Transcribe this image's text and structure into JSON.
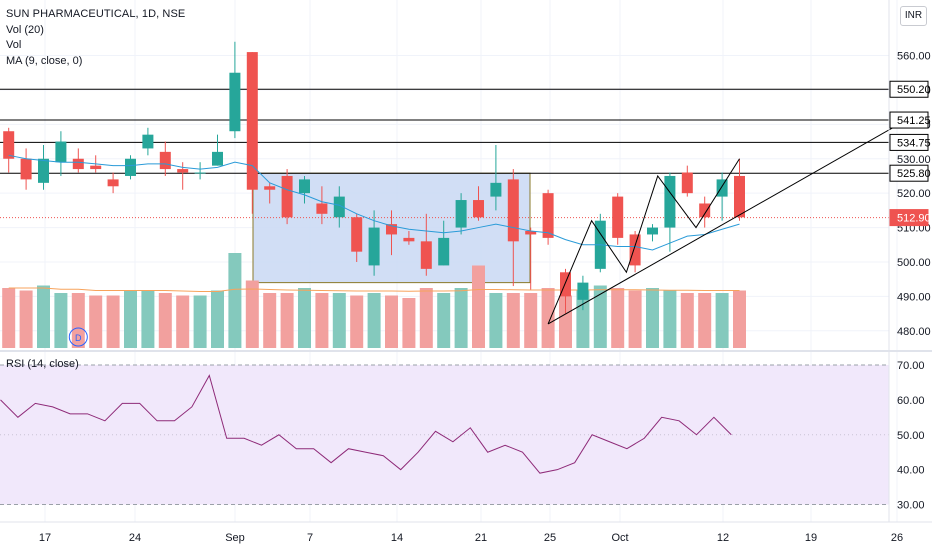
{
  "header": {
    "title": "SUN PHARMACEUTICAL, 1D, NSE",
    "indicators": [
      "Vol (20)",
      "Vol",
      "MA (9, close, 0)"
    ],
    "currency": "INR"
  },
  "rsi_panel": {
    "label": "RSI (14, close)"
  },
  "colors": {
    "up": "#26a69a",
    "down": "#ef5350",
    "vol_up": "#84c9bd",
    "vol_down": "#f2a09e",
    "ma": "#2a9bd8",
    "vol_ma": "#f7a35c",
    "rsi": "#8e2a78",
    "rsi_band": "#f1e8fb",
    "box_fill": "#c9d8f3",
    "box_stroke": "#8a7a2a"
  },
  "chart_data": {
    "type": "candlestick",
    "price_axis": {
      "ticks": [
        480,
        490,
        500,
        510,
        520,
        530,
        540,
        550,
        560
      ],
      "range": [
        475,
        568
      ]
    },
    "price_labels": [
      {
        "value": 550.2,
        "text": "550.20"
      },
      {
        "value": 541.25,
        "text": "541.25"
      },
      {
        "value": 534.75,
        "text": "534.75"
      },
      {
        "value": 525.8,
        "text": "525.80"
      },
      {
        "value": 512.9,
        "text": "512.90",
        "current": true
      }
    ],
    "horizontal_lines": [
      550.2,
      541.25,
      534.75,
      525.8
    ],
    "x_labels": [
      "17",
      "24",
      "Sep",
      "7",
      "14",
      "21",
      "25",
      "Oct",
      "12",
      "19",
      "26"
    ],
    "candles": [
      {
        "date": "Aug 13",
        "o": 538,
        "h": 539,
        "l": 526,
        "c": 530
      },
      {
        "date": "Aug 14",
        "o": 530,
        "h": 533,
        "l": 521,
        "c": 524
      },
      {
        "date": "Aug 17",
        "o": 523,
        "h": 534,
        "l": 521,
        "c": 530
      },
      {
        "date": "Aug 18",
        "o": 529,
        "h": 538,
        "l": 525,
        "c": 535
      },
      {
        "date": "Aug 19",
        "o": 530,
        "h": 533,
        "l": 526,
        "c": 527
      },
      {
        "date": "Aug 20",
        "o": 528,
        "h": 531,
        "l": 526,
        "c": 527
      },
      {
        "date": "Aug 21",
        "o": 524,
        "h": 526,
        "l": 520,
        "c": 522
      },
      {
        "date": "Aug 24",
        "o": 525,
        "h": 531,
        "l": 524,
        "c": 530
      },
      {
        "date": "Aug 25",
        "o": 533,
        "h": 539,
        "l": 531,
        "c": 537
      },
      {
        "date": "Aug 26",
        "o": 532,
        "h": 535,
        "l": 525,
        "c": 527
      },
      {
        "date": "Aug 27",
        "o": 527,
        "h": 529,
        "l": 521,
        "c": 526
      },
      {
        "date": "Aug 28",
        "o": 526,
        "h": 529,
        "l": 524,
        "c": 526
      },
      {
        "date": "Aug 31",
        "o": 528,
        "h": 537,
        "l": 528,
        "c": 532
      },
      {
        "date": "Sep 1",
        "o": 538,
        "h": 564,
        "l": 536,
        "c": 555
      },
      {
        "date": "Sep 2",
        "o": 561,
        "h": 561,
        "l": 514,
        "c": 521
      },
      {
        "date": "Sep 3",
        "o": 522,
        "h": 523,
        "l": 517,
        "c": 521
      },
      {
        "date": "Sep 4",
        "o": 525,
        "h": 527,
        "l": 511,
        "c": 513
      },
      {
        "date": "Sep 7",
        "o": 520,
        "h": 525,
        "l": 517,
        "c": 524
      },
      {
        "date": "Sep 8",
        "o": 517,
        "h": 522,
        "l": 511,
        "c": 514
      },
      {
        "date": "Sep 9",
        "o": 513,
        "h": 522,
        "l": 510,
        "c": 519
      },
      {
        "date": "Sep 10",
        "o": 513,
        "h": 514,
        "l": 500,
        "c": 503
      },
      {
        "date": "Sep 11",
        "o": 499,
        "h": 515,
        "l": 496,
        "c": 510
      },
      {
        "date": "Sep 14",
        "o": 511,
        "h": 515,
        "l": 502,
        "c": 508
      },
      {
        "date": "Sep 15",
        "o": 507,
        "h": 509,
        "l": 505,
        "c": 506
      },
      {
        "date": "Sep 16",
        "o": 506,
        "h": 514,
        "l": 496,
        "c": 498
      },
      {
        "date": "Sep 17",
        "o": 499,
        "h": 512,
        "l": 499,
        "c": 507
      },
      {
        "date": "Sep 18",
        "o": 510,
        "h": 520,
        "l": 508,
        "c": 518
      },
      {
        "date": "Sep 21",
        "o": 518,
        "h": 522,
        "l": 512,
        "c": 513
      },
      {
        "date": "Sep 22",
        "o": 519,
        "h": 534,
        "l": 515,
        "c": 523
      },
      {
        "date": "Sep 23",
        "o": 524,
        "h": 527,
        "l": 493,
        "c": 506
      },
      {
        "date": "Sep 24",
        "o": 509,
        "h": 510,
        "l": 492,
        "c": 508
      },
      {
        "date": "Sep 25",
        "o": 520,
        "h": 521,
        "l": 505,
        "c": 507
      },
      {
        "date": "Sep 28",
        "o": 497,
        "h": 498,
        "l": 485,
        "c": 490
      },
      {
        "date": "Sep 29",
        "o": 489,
        "h": 496,
        "l": 486,
        "c": 494
      },
      {
        "date": "Sep 30",
        "o": 498,
        "h": 514,
        "l": 497,
        "c": 512
      },
      {
        "date": "Oct 1",
        "o": 519,
        "h": 520,
        "l": 505,
        "c": 507
      },
      {
        "date": "Oct 5",
        "o": 508,
        "h": 509,
        "l": 497,
        "c": 499
      },
      {
        "date": "Oct 6",
        "o": 508,
        "h": 511,
        "l": 506,
        "c": 510
      },
      {
        "date": "Oct 7",
        "o": 510,
        "h": 526,
        "l": 503,
        "c": 525
      },
      {
        "date": "Oct 8",
        "o": 526,
        "h": 528,
        "l": 519,
        "c": 520
      },
      {
        "date": "Oct 9",
        "o": 517,
        "h": 519,
        "l": 510,
        "c": 513
      },
      {
        "date": "Oct 12",
        "o": 519,
        "h": 526,
        "l": 512,
        "c": 524
      },
      {
        "date": "Oct 13",
        "o": 525,
        "h": 530,
        "l": 512,
        "c": 513
      }
    ],
    "ma9": [
      531,
      530,
      529.5,
      529,
      529,
      528.5,
      528,
      528,
      528.5,
      528.5,
      527.5,
      527,
      527.5,
      529,
      528,
      523,
      521,
      519.5,
      517.5,
      516.5,
      514,
      512,
      510.5,
      509.5,
      509,
      508.5,
      509,
      510,
      511,
      510,
      509,
      508.5,
      506.5,
      505,
      505,
      504.5,
      504.5,
      503.5,
      505.5,
      507.5,
      508,
      509.5,
      511
    ],
    "volume": [
      24,
      23,
      25,
      22,
      22,
      21,
      21,
      23,
      23,
      22,
      21,
      21,
      23,
      38,
      27,
      22,
      22,
      24,
      22,
      22,
      21,
      22,
      21,
      20,
      24,
      22,
      24,
      33,
      22,
      22,
      22,
      24,
      21,
      23,
      25,
      24,
      23,
      24,
      23,
      22,
      22,
      22,
      23
    ],
    "volume_ma": [
      24,
      24,
      24,
      23.5,
      23.5,
      23,
      23,
      23,
      23,
      23,
      22.8,
      22.6,
      22.6,
      23.5,
      23.6,
      23.4,
      23.2,
      23.1,
      23,
      22.9,
      22.8,
      22.8,
      22.8,
      22.7,
      22.8,
      22.8,
      22.9,
      23.4,
      23.4,
      23.3,
      23.2,
      23.2,
      23.2,
      23.2,
      23.3,
      23.3,
      23.3,
      23.2,
      23.1,
      23.1,
      23,
      23,
      23
    ],
    "volume_marker": {
      "index": 4,
      "label": "D"
    },
    "rsi": {
      "range": [
        25,
        72
      ],
      "levels": [
        70,
        30
      ],
      "ticks": [
        30,
        40,
        50,
        60,
        70
      ],
      "values": [
        60,
        55,
        59,
        58,
        56,
        56,
        54,
        59,
        59,
        54,
        54,
        58,
        67,
        49,
        49,
        47,
        50,
        46,
        46,
        42,
        46,
        45,
        44,
        40,
        45,
        51,
        48,
        52,
        45,
        47,
        45,
        39,
        40,
        42,
        50,
        48,
        46,
        49,
        55,
        54,
        50,
        55,
        50
      ]
    },
    "box": {
      "start": 15,
      "end": 30,
      "top": 525.8,
      "bottom": 494
    },
    "trendline": [
      {
        "i": 31,
        "p": 482
      },
      {
        "i": 51.5,
        "p": 541
      }
    ],
    "zigzag": [
      {
        "i": 31,
        "p": 482
      },
      {
        "i": 33.5,
        "p": 512
      },
      {
        "i": 35.5,
        "p": 497
      },
      {
        "i": 37.3,
        "p": 525
      },
      {
        "i": 39.5,
        "p": 510
      },
      {
        "i": 42,
        "p": 530
      }
    ]
  }
}
